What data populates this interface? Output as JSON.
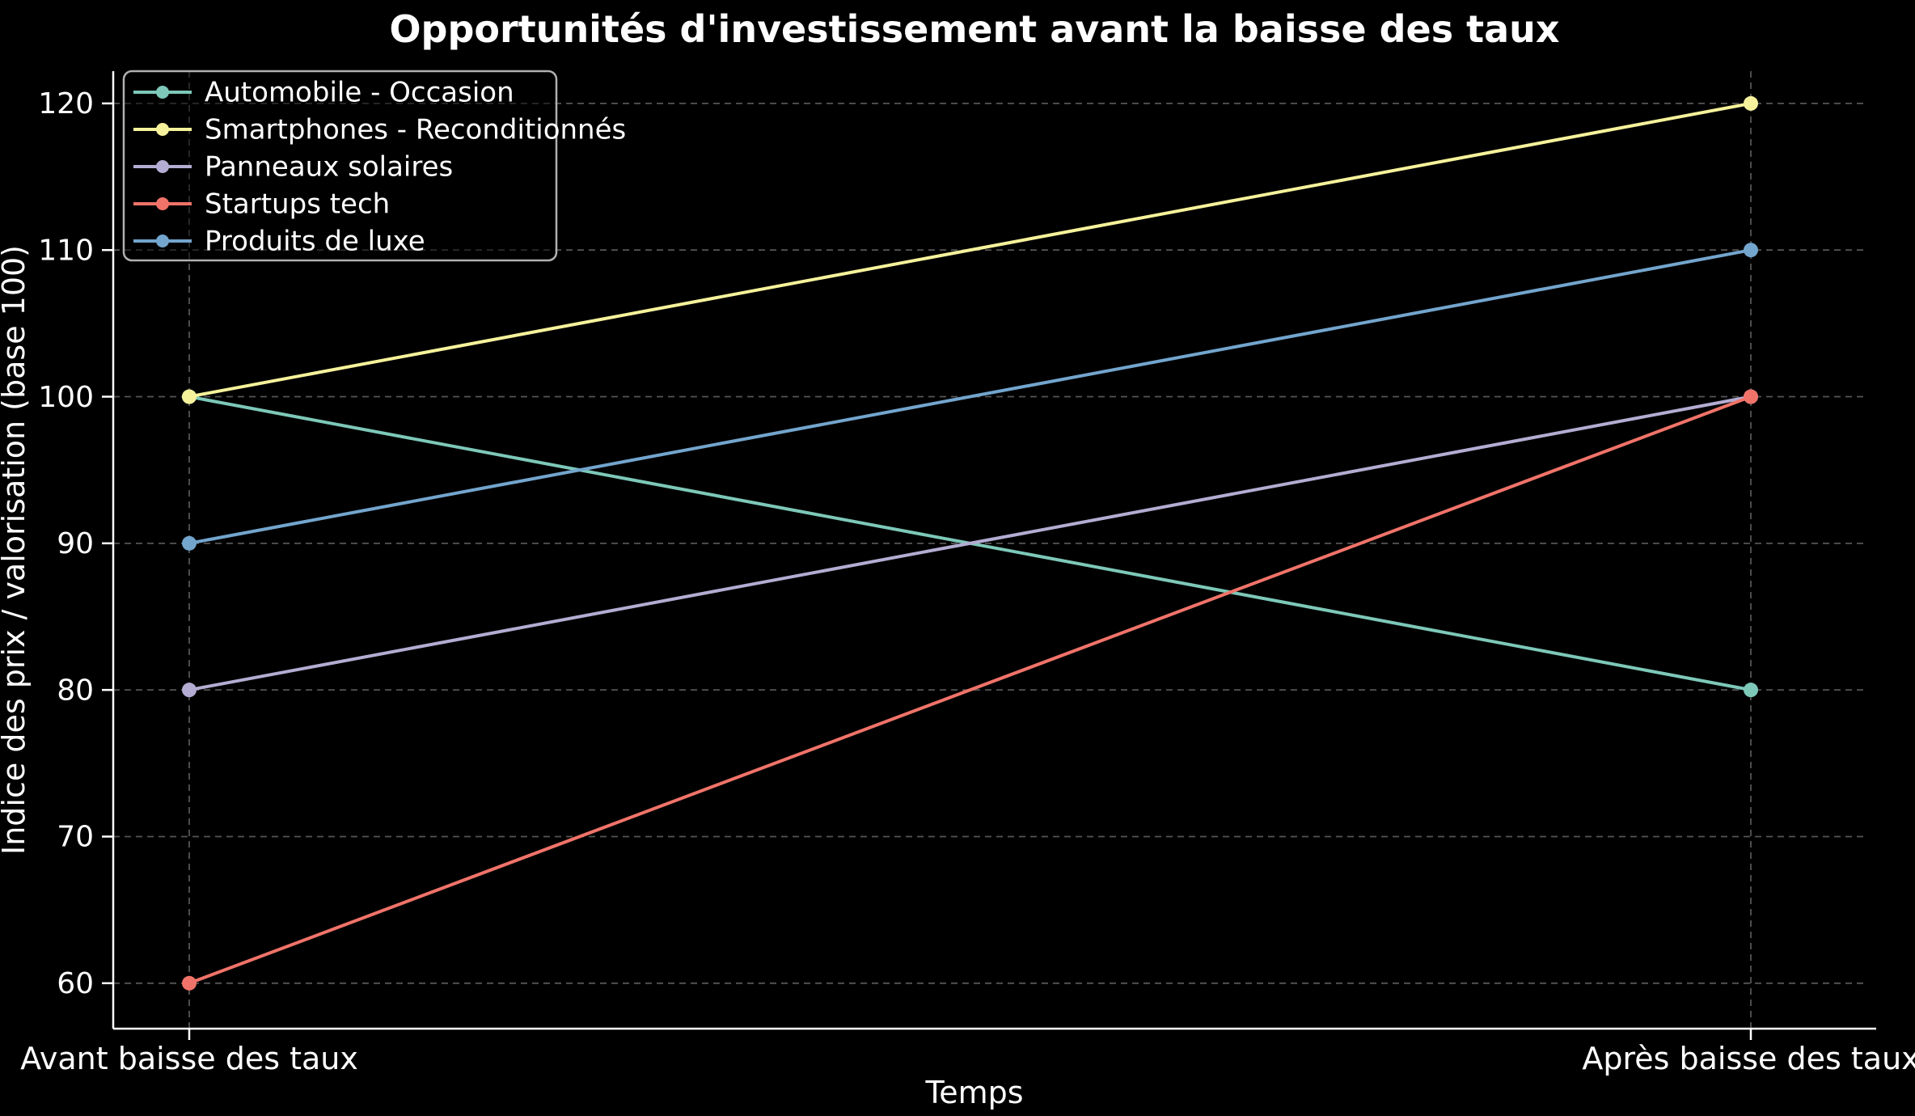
{
  "chart_data": {
    "type": "line",
    "title": "Opportunités d'investissement avant la baisse des taux",
    "xlabel": "Temps",
    "ylabel": "Indice des prix / valorisation (base 100)",
    "categories": [
      "Avant baisse des taux",
      "Après baisse des taux"
    ],
    "series": [
      {
        "name": "Automobile - Occasion",
        "color": "#7dc8b9",
        "values": [
          100,
          80
        ]
      },
      {
        "name": "Smartphones - Reconditionnés",
        "color": "#f6f29b",
        "values": [
          100,
          120
        ]
      },
      {
        "name": "Panneaux solaires",
        "color": "#b4acd2",
        "values": [
          80,
          100
        ]
      },
      {
        "name": "Startups tech",
        "color": "#f07369",
        "values": [
          60,
          100
        ]
      },
      {
        "name": "Produits de luxe",
        "color": "#73a5cd",
        "values": [
          90,
          110
        ]
      }
    ],
    "yticks": [
      60,
      70,
      80,
      90,
      100,
      110,
      120
    ],
    "ylim": [
      56.9,
      122.2
    ],
    "grid": true,
    "legend_position": "upper left",
    "style": {
      "background": "#000000",
      "grid_color": "#555555",
      "axis_color": "#ffffff",
      "text_color": "#ffffff",
      "legend_border_color": "#b0b0b0",
      "legend_fill": "rgba(0,0,0,0.5)"
    }
  }
}
